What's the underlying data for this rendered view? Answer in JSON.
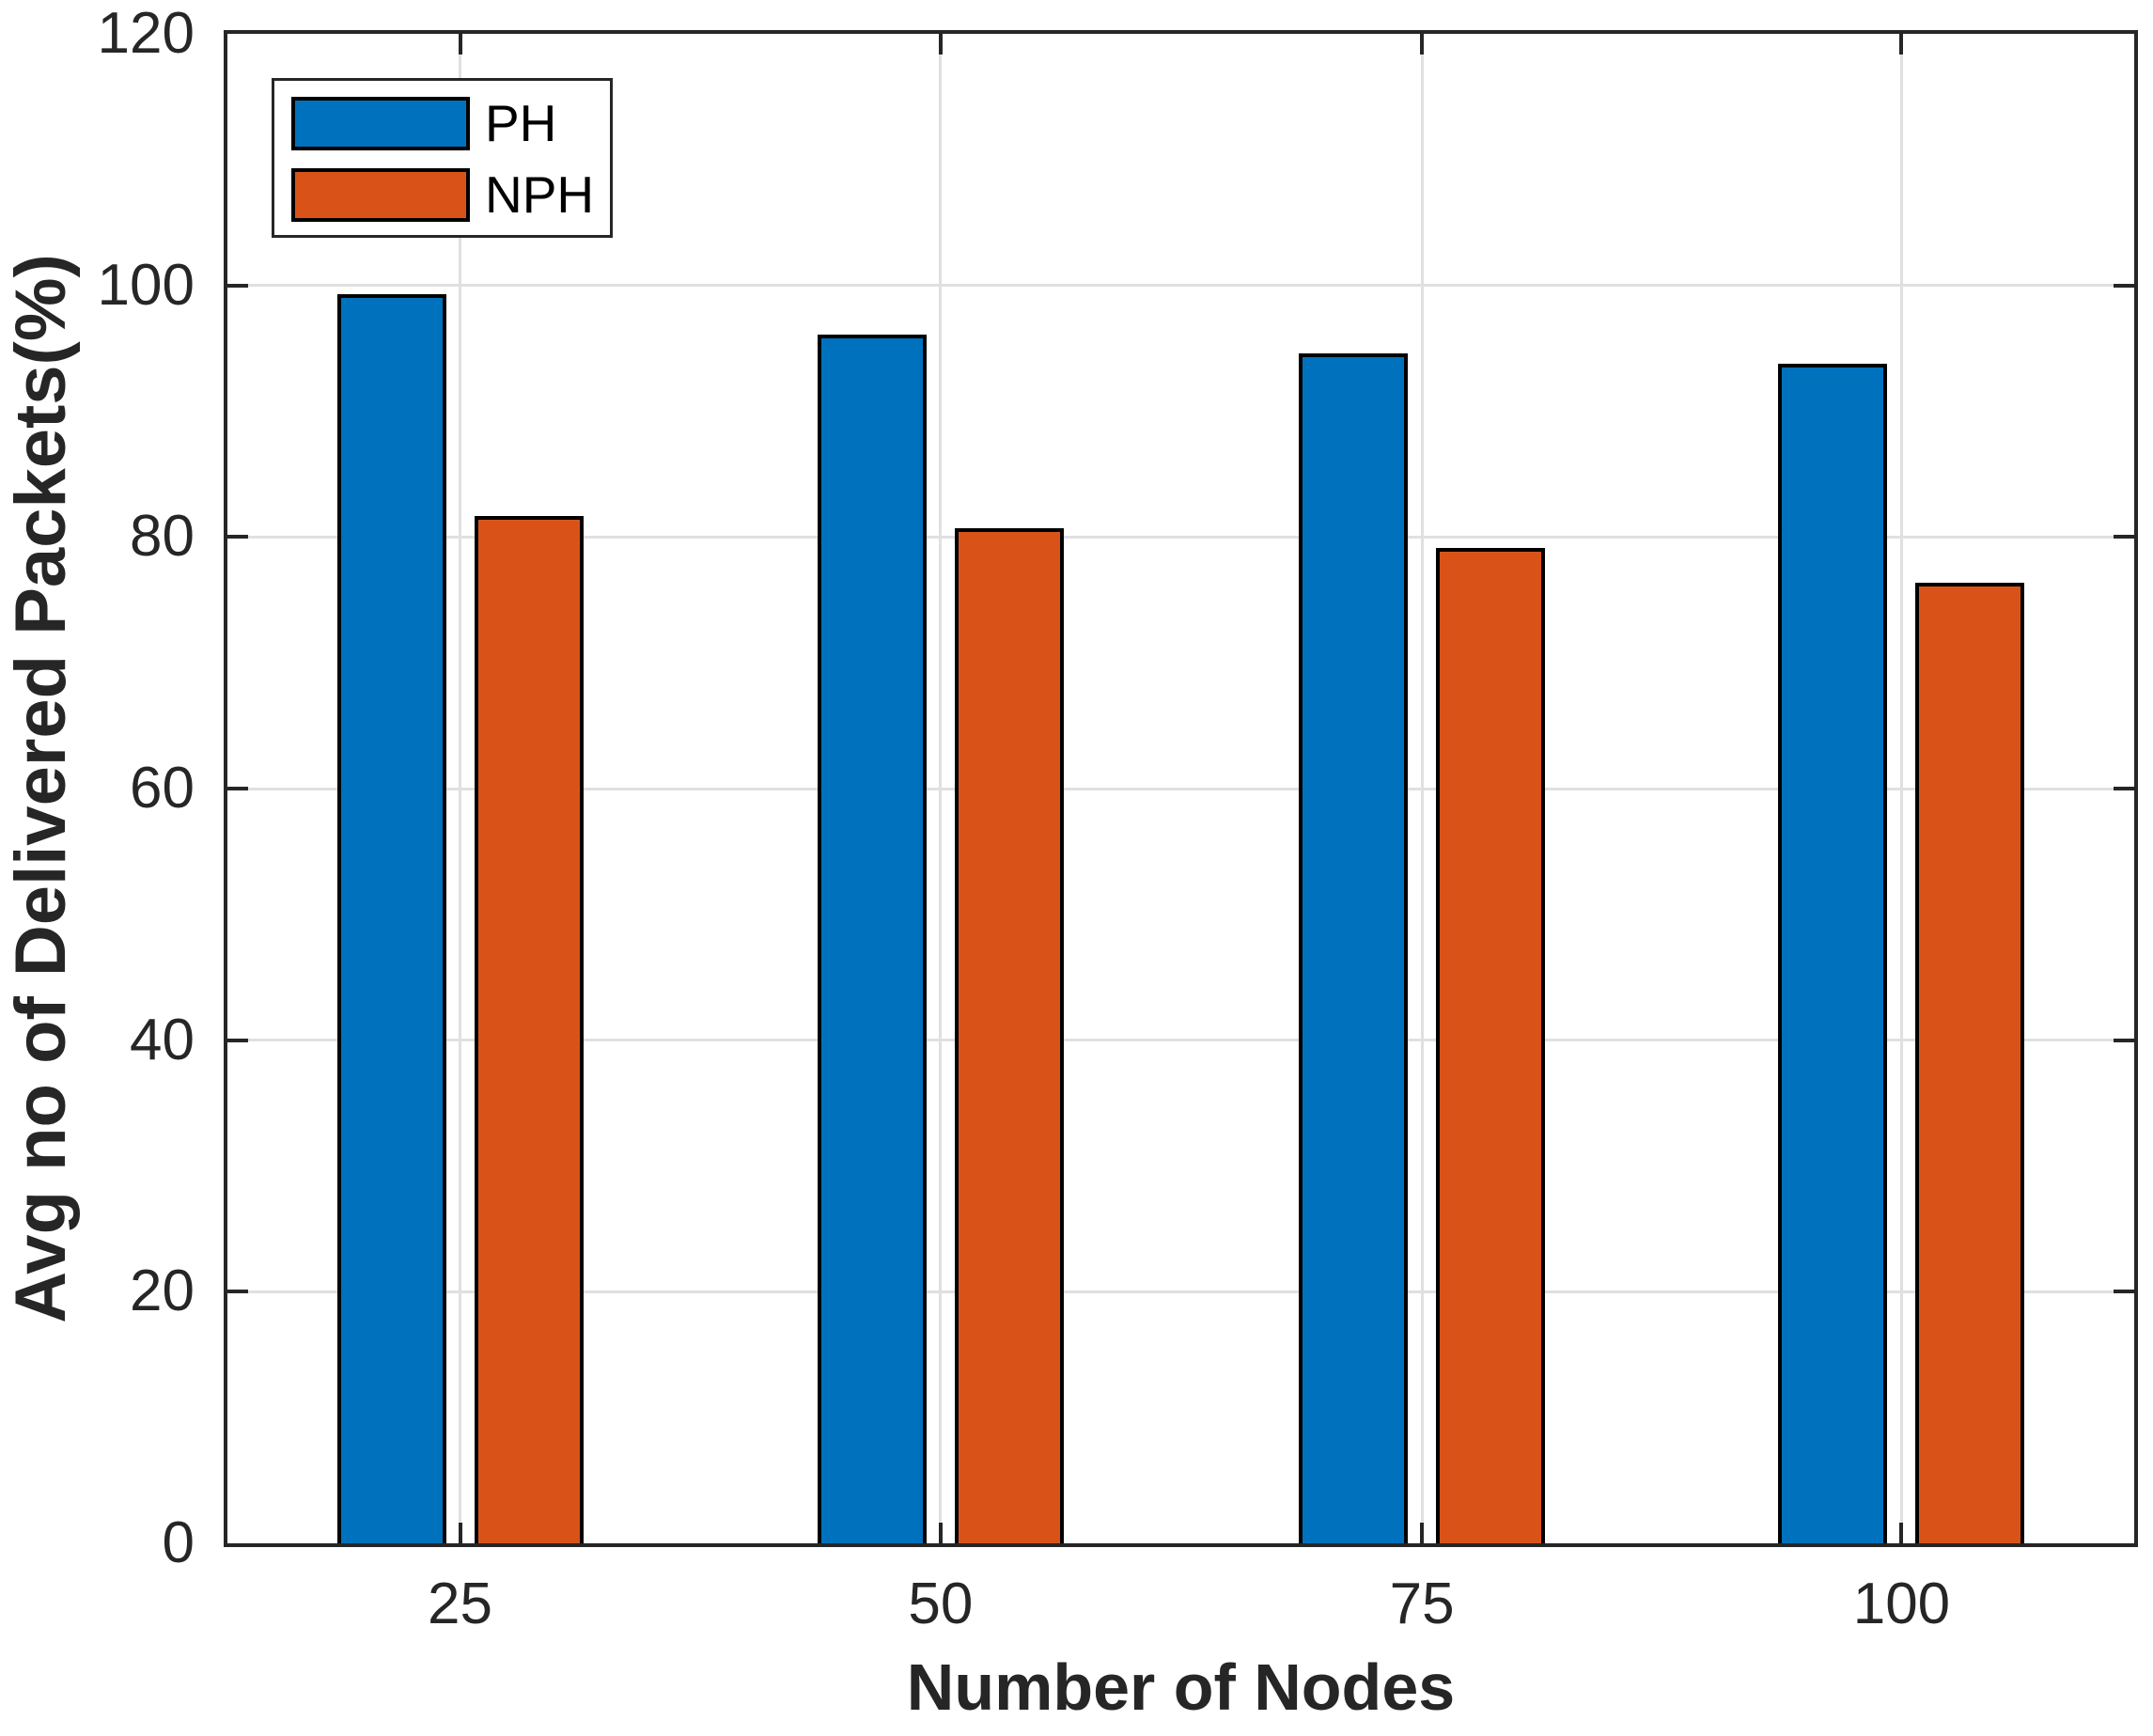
{
  "chart_data": {
    "type": "bar",
    "title": "",
    "xlabel": "Number of Nodes",
    "ylabel": "Avg no of Delivered Packets(%)",
    "categories": [
      "25",
      "50",
      "75",
      "100"
    ],
    "series": [
      {
        "name": "PH",
        "color": "#0072BD",
        "values": [
          99.3,
          96.1,
          94.6,
          93.8
        ]
      },
      {
        "name": "NPH",
        "color": "#D95319",
        "values": [
          81.7,
          80.7,
          79.1,
          76.4
        ]
      }
    ],
    "ylim": [
      0,
      120
    ],
    "yticks": [
      0,
      20,
      40,
      60,
      80,
      100,
      120
    ],
    "grid": true,
    "legend_position": "top-left",
    "colors": {
      "axis": "#262626",
      "grid": "#e0e0e0",
      "bar_edge": "#000000",
      "background": "#ffffff"
    }
  }
}
